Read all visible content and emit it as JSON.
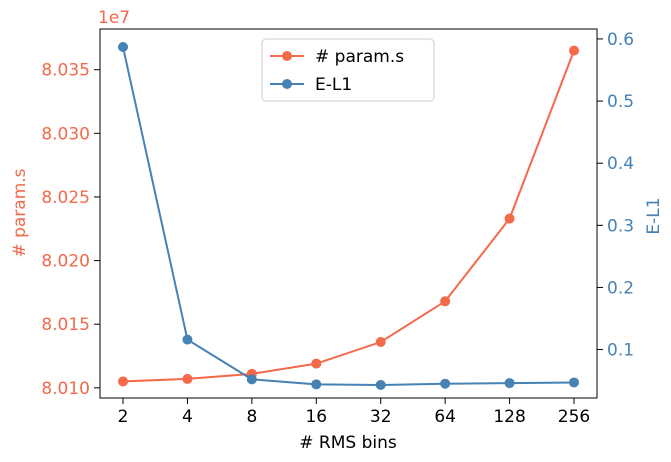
{
  "chart_data": {
    "type": "line",
    "xlabel": "# RMS bins",
    "ylabel_left": "# param.s",
    "ylabel_right": "E-L1",
    "left_offset_label": "1e7",
    "categories": [
      "2",
      "4",
      "8",
      "16",
      "32",
      "64",
      "128",
      "256"
    ],
    "left_axis": {
      "scale": 10000000,
      "range": [
        80.0092,
        80.0382
      ],
      "ticks": [
        80.01,
        80.015,
        80.02,
        80.025,
        80.03,
        80.035
      ],
      "tick_labels": [
        "8.010",
        "8.015",
        "8.020",
        "8.025",
        "8.030",
        "8.035"
      ]
    },
    "right_axis": {
      "range": [
        0.022,
        0.616
      ],
      "ticks": [
        0.1,
        0.2,
        0.3,
        0.4,
        0.5,
        0.6
      ],
      "tick_labels": [
        "0.1",
        "0.2",
        "0.3",
        "0.4",
        "0.5",
        "0.6"
      ]
    },
    "series": [
      {
        "name": "# param.s",
        "axis": "left",
        "color": "#f4694a",
        "values": [
          80.0105,
          80.0107,
          80.0111,
          80.0119,
          80.0136,
          80.0168,
          80.0233,
          80.0365
        ]
      },
      {
        "name": "E-L1",
        "axis": "right",
        "color": "#4682b4",
        "values": [
          0.587,
          0.116,
          0.052,
          0.044,
          0.043,
          0.045,
          0.046,
          0.047
        ]
      }
    ],
    "legend_position": "top-center",
    "grid": false
  }
}
